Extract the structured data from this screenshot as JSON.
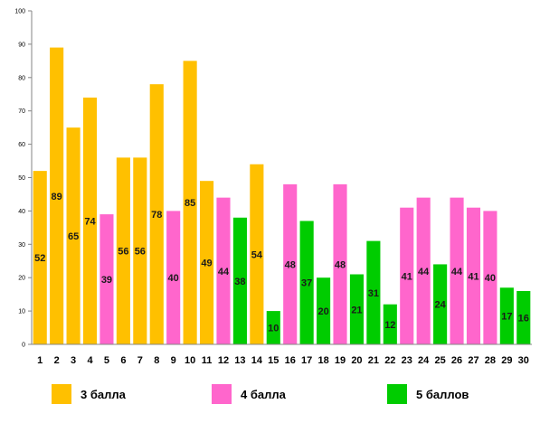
{
  "chart_data": {
    "type": "bar",
    "categories": [
      "1",
      "2",
      "3",
      "4",
      "5",
      "6",
      "7",
      "8",
      "9",
      "10",
      "11",
      "12",
      "13",
      "14",
      "15",
      "16",
      "17",
      "18",
      "19",
      "20",
      "21",
      "22",
      "23",
      "24",
      "25",
      "26",
      "27",
      "28",
      "29",
      "30"
    ],
    "values": [
      52,
      89,
      65,
      74,
      39,
      56,
      56,
      78,
      40,
      85,
      49,
      44,
      38,
      54,
      10,
      48,
      37,
      20,
      48,
      21,
      31,
      12,
      41,
      44,
      24,
      44,
      41,
      40,
      17,
      16
    ],
    "groups": [
      0,
      0,
      0,
      0,
      1,
      0,
      0,
      0,
      1,
      0,
      0,
      1,
      2,
      0,
      2,
      1,
      2,
      2,
      1,
      2,
      2,
      2,
      1,
      1,
      2,
      1,
      1,
      1,
      2,
      2
    ],
    "series": [
      {
        "name": "3 балла",
        "color": "#ffc000"
      },
      {
        "name": "4 балла",
        "color": "#ff66cc"
      },
      {
        "name": "5 баллов",
        "color": "#00cc00"
      }
    ],
    "ylim": [
      0,
      100
    ],
    "yticks": [
      0,
      10,
      20,
      30,
      40,
      50,
      60,
      70,
      80,
      90,
      100
    ],
    "grid": false,
    "legend_position": "bottom"
  }
}
